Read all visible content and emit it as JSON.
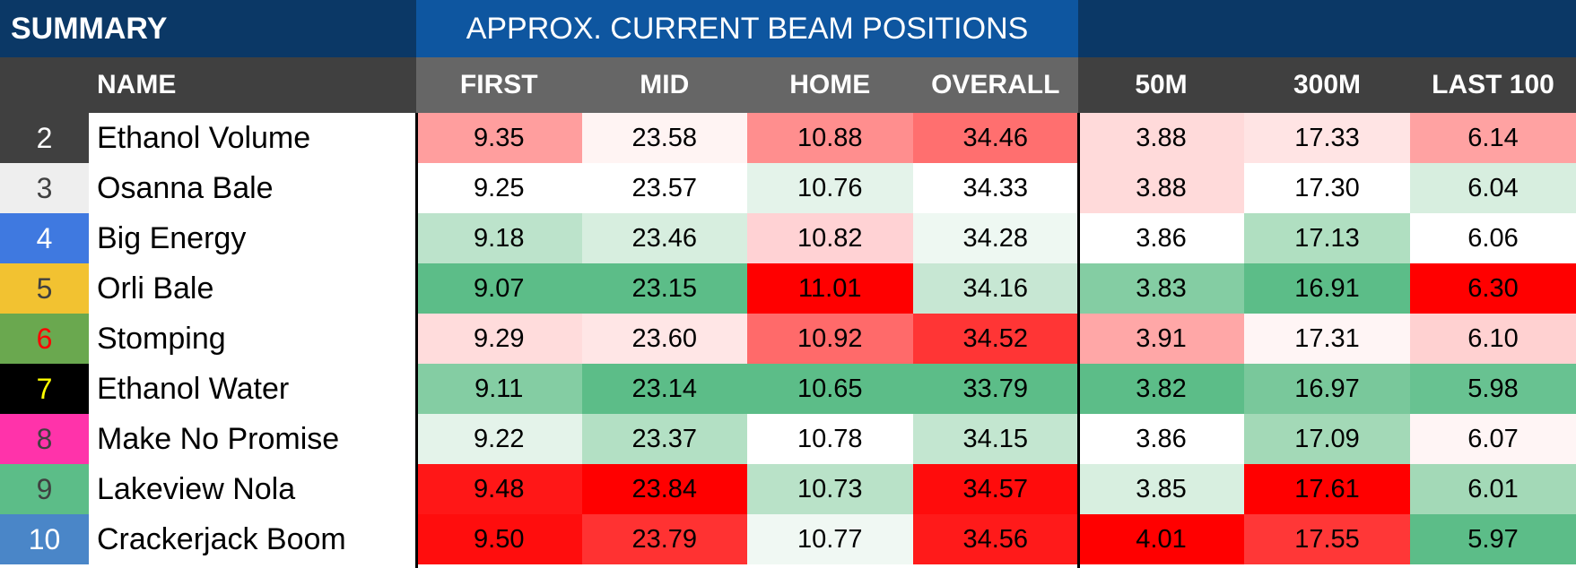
{
  "title": {
    "summary": "SUMMARY",
    "beam": "APPROX. CURRENT BEAM POSITIONS"
  },
  "headers": {
    "name": "NAME",
    "first": "FIRST",
    "mid": "MID",
    "home": "HOME",
    "overall": "OVERALL",
    "m50": "50M",
    "m300": "300M",
    "last100": "LAST 100"
  },
  "rows": [
    {
      "num": "2",
      "num_bg": "#404040",
      "num_fg": "#ffffff",
      "name": "Ethanol Volume",
      "cells": [
        {
          "v": "9.35",
          "bg": "#ff9e9e"
        },
        {
          "v": "23.58",
          "bg": "#fff4f3"
        },
        {
          "v": "10.88",
          "bg": "#ff8e8e"
        },
        {
          "v": "34.46",
          "bg": "#ff6f6f"
        },
        {
          "v": "3.88",
          "bg": "#ffdada"
        },
        {
          "v": "17.33",
          "bg": "#ffe4e4"
        },
        {
          "v": "6.14",
          "bg": "#ffa2a2"
        }
      ]
    },
    {
      "num": "3",
      "num_bg": "#eeeeee",
      "num_fg": "#404040",
      "name": "Osanna Bale",
      "cells": [
        {
          "v": "9.25",
          "bg": "#ffffff"
        },
        {
          "v": "23.57",
          "bg": "#ffffff"
        },
        {
          "v": "10.76",
          "bg": "#e4f3ea"
        },
        {
          "v": "34.33",
          "bg": "#ffffff"
        },
        {
          "v": "3.88",
          "bg": "#ffdada"
        },
        {
          "v": "17.30",
          "bg": "#ffffff"
        },
        {
          "v": "6.04",
          "bg": "#d7eedf"
        }
      ]
    },
    {
      "num": "4",
      "num_bg": "#3f79e0",
      "num_fg": "#ffffff",
      "name": "Big Energy",
      "cells": [
        {
          "v": "9.18",
          "bg": "#bce3cb"
        },
        {
          "v": "23.46",
          "bg": "#d7eedf"
        },
        {
          "v": "10.82",
          "bg": "#ffd2d4"
        },
        {
          "v": "34.28",
          "bg": "#eef8f2"
        },
        {
          "v": "3.86",
          "bg": "#ffffff"
        },
        {
          "v": "17.13",
          "bg": "#b0dfc1"
        },
        {
          "v": "6.06",
          "bg": "#ffffff"
        }
      ]
    },
    {
      "num": "5",
      "num_bg": "#f2c231",
      "num_fg": "#404040",
      "name": "Orli Bale",
      "cells": [
        {
          "v": "9.07",
          "bg": "#5cbd88"
        },
        {
          "v": "23.15",
          "bg": "#5cbd88"
        },
        {
          "v": "11.01",
          "bg": "#ff0000"
        },
        {
          "v": "34.16",
          "bg": "#c7e7d3"
        },
        {
          "v": "3.83",
          "bg": "#84cda3"
        },
        {
          "v": "16.91",
          "bg": "#5cbd88"
        },
        {
          "v": "6.30",
          "bg": "#ff0000"
        }
      ]
    },
    {
      "num": "6",
      "num_bg": "#6aa84f",
      "num_fg": "#ff0000",
      "name": "Stomping",
      "cells": [
        {
          "v": "9.29",
          "bg": "#ffdcdc"
        },
        {
          "v": "23.60",
          "bg": "#ffe6e6"
        },
        {
          "v": "10.92",
          "bg": "#ff6a6a"
        },
        {
          "v": "34.52",
          "bg": "#ff3535"
        },
        {
          "v": "3.91",
          "bg": "#ffa7a7"
        },
        {
          "v": "17.31",
          "bg": "#fff5f5"
        },
        {
          "v": "6.10",
          "bg": "#ffd1d1"
        }
      ]
    },
    {
      "num": "7",
      "num_bg": "#000000",
      "num_fg": "#ffff00",
      "name": "Ethanol Water",
      "cells": [
        {
          "v": "9.11",
          "bg": "#84cda3"
        },
        {
          "v": "23.14",
          "bg": "#5cbd88"
        },
        {
          "v": "10.65",
          "bg": "#5cbd88"
        },
        {
          "v": "33.79",
          "bg": "#5cbd88"
        },
        {
          "v": "3.82",
          "bg": "#5cbd88"
        },
        {
          "v": "16.97",
          "bg": "#79c89b"
        },
        {
          "v": "5.98",
          "bg": "#68c291"
        }
      ]
    },
    {
      "num": "8",
      "num_bg": "#ff33aa",
      "num_fg": "#404040",
      "name": "Make No Promise",
      "cells": [
        {
          "v": "9.22",
          "bg": "#e4f3ea"
        },
        {
          "v": "23.37",
          "bg": "#b3e0c4"
        },
        {
          "v": "10.78",
          "bg": "#ffffff"
        },
        {
          "v": "34.15",
          "bg": "#c3e6d0"
        },
        {
          "v": "3.86",
          "bg": "#ffffff"
        },
        {
          "v": "17.09",
          "bg": "#a3d9b7"
        },
        {
          "v": "6.07",
          "bg": "#fff5f5"
        }
      ]
    },
    {
      "num": "9",
      "num_bg": "#5cbd88",
      "num_fg": "#404040",
      "name": "Lakeview Nola",
      "cells": [
        {
          "v": "9.48",
          "bg": "#ff1717"
        },
        {
          "v": "23.84",
          "bg": "#ff0000"
        },
        {
          "v": "10.73",
          "bg": "#b9e2c8"
        },
        {
          "v": "34.57",
          "bg": "#ff0c0c"
        },
        {
          "v": "3.85",
          "bg": "#d8efe0"
        },
        {
          "v": "17.61",
          "bg": "#ff0000"
        },
        {
          "v": "6.01",
          "bg": "#a3d9b7"
        }
      ]
    },
    {
      "num": "10",
      "num_bg": "#4a86c8",
      "num_fg": "#ffffff",
      "name": "Crackerjack Boom",
      "cells": [
        {
          "v": "9.50",
          "bg": "#ff0d0d"
        },
        {
          "v": "23.79",
          "bg": "#ff3232"
        },
        {
          "v": "10.77",
          "bg": "#f0f8f3"
        },
        {
          "v": "34.56",
          "bg": "#ff1a1a"
        },
        {
          "v": "4.01",
          "bg": "#ff0000"
        },
        {
          "v": "17.55",
          "bg": "#ff3737"
        },
        {
          "v": "5.97",
          "bg": "#5cbd88"
        }
      ]
    }
  ]
}
